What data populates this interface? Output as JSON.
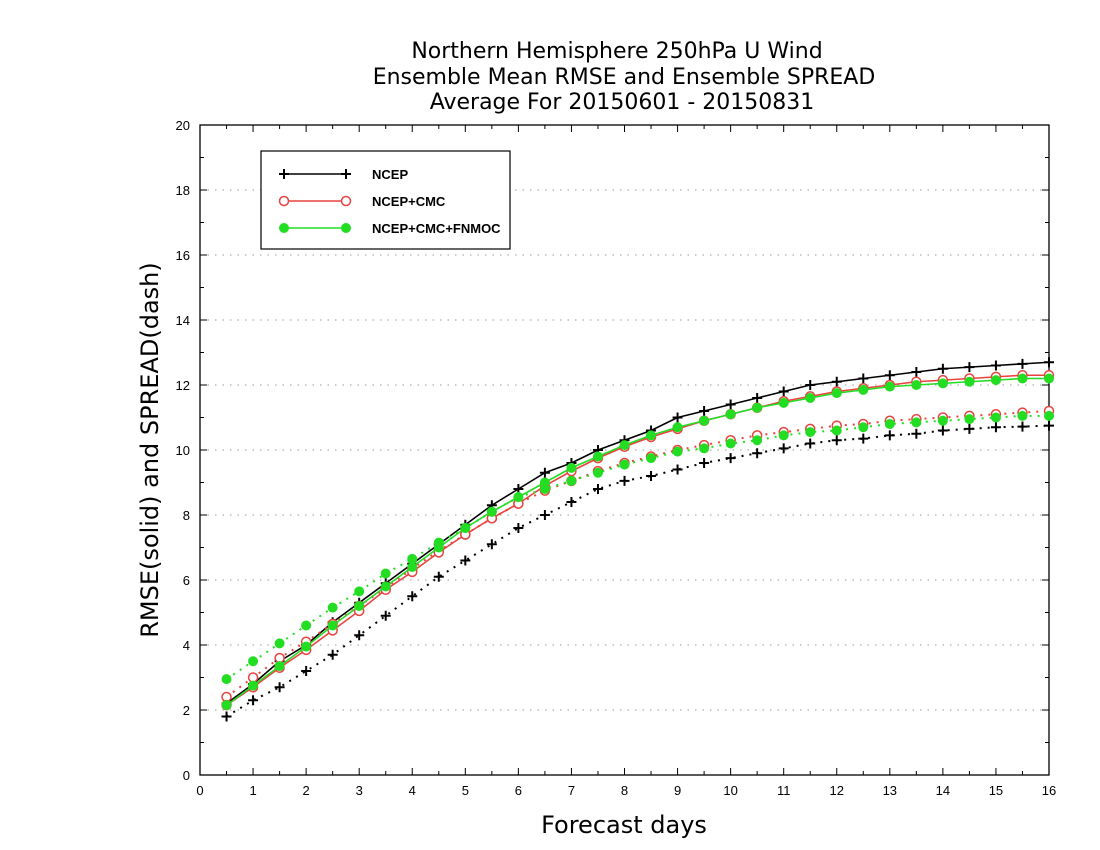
{
  "chart_data": {
    "type": "line",
    "title": [
      "Northern Hemisphere 250hPa U Wind",
      "Ensemble Mean RMSE and Ensemble SPREAD",
      "Average For 20150601 - 20150831"
    ],
    "xlabel": "Forecast days",
    "ylabel": "RMSE(solid) and SPREAD(dash)",
    "xlim": [
      0,
      16
    ],
    "ylim": [
      0,
      20
    ],
    "xticks": [
      "0",
      "1",
      "2",
      "3",
      "4",
      "5",
      "6",
      "7",
      "8",
      "9",
      "10",
      "11",
      "12",
      "13",
      "14",
      "15",
      "16"
    ],
    "yticks": [
      "0",
      "2",
      "4",
      "6",
      "8",
      "10",
      "12",
      "14",
      "16",
      "18",
      "20"
    ],
    "grid": true,
    "legend_position": "top-left",
    "x": [
      0.5,
      1,
      1.5,
      2,
      2.5,
      3,
      3.5,
      4,
      4.5,
      5,
      5.5,
      6,
      6.5,
      7,
      7.5,
      8,
      8.5,
      9,
      9.5,
      10,
      10.5,
      11,
      11.5,
      12,
      12.5,
      13,
      13.5,
      14,
      14.5,
      15,
      15.5,
      16
    ],
    "series": [
      {
        "name": "NCEP",
        "color": "#000000",
        "marker": "plus",
        "rmse": [
          2.2,
          2.8,
          3.5,
          4.0,
          4.7,
          5.3,
          5.9,
          6.5,
          7.1,
          7.7,
          8.3,
          8.8,
          9.3,
          9.6,
          10.0,
          10.3,
          10.6,
          11.0,
          11.2,
          11.4,
          11.6,
          11.8,
          12.0,
          12.1,
          12.2,
          12.3,
          12.4,
          12.5,
          12.55,
          12.6,
          12.65,
          12.7
        ],
        "spread": [
          1.8,
          2.3,
          2.7,
          3.2,
          3.7,
          4.3,
          4.9,
          5.5,
          6.1,
          6.6,
          7.1,
          7.6,
          8.0,
          8.4,
          8.8,
          9.05,
          9.2,
          9.4,
          9.6,
          9.75,
          9.9,
          10.05,
          10.2,
          10.3,
          10.35,
          10.45,
          10.5,
          10.6,
          10.65,
          10.7,
          10.72,
          10.75
        ]
      },
      {
        "name": "NCEP+CMC",
        "color": "#e8433f",
        "marker": "open-circle",
        "rmse": [
          2.15,
          2.7,
          3.3,
          3.85,
          4.45,
          5.05,
          5.7,
          6.25,
          6.85,
          7.4,
          7.9,
          8.35,
          8.9,
          9.35,
          9.75,
          10.1,
          10.4,
          10.65,
          10.9,
          11.1,
          11.3,
          11.5,
          11.65,
          11.8,
          11.9,
          12.0,
          12.1,
          12.15,
          12.2,
          12.25,
          12.3,
          12.3
        ],
        "spread": [
          2.4,
          3.0,
          3.6,
          4.1,
          4.65,
          5.2,
          5.75,
          6.35,
          6.9,
          7.4,
          7.9,
          8.35,
          8.75,
          9.05,
          9.35,
          9.6,
          9.8,
          10.0,
          10.15,
          10.3,
          10.45,
          10.55,
          10.65,
          10.75,
          10.8,
          10.9,
          10.95,
          11.0,
          11.05,
          11.1,
          11.15,
          11.2
        ]
      },
      {
        "name": "NCEP+CMC+FNMOC",
        "color": "#22dd22",
        "marker": "filled-circle",
        "rmse": [
          2.15,
          2.75,
          3.35,
          3.95,
          4.6,
          5.2,
          5.8,
          6.4,
          7.0,
          7.6,
          8.1,
          8.55,
          9.0,
          9.45,
          9.8,
          10.15,
          10.45,
          10.7,
          10.9,
          11.1,
          11.3,
          11.45,
          11.6,
          11.75,
          11.85,
          11.95,
          12.0,
          12.05,
          12.1,
          12.15,
          12.2,
          12.2
        ],
        "spread": [
          2.95,
          3.5,
          4.05,
          4.6,
          5.15,
          5.65,
          6.2,
          6.65,
          7.15,
          7.6,
          8.1,
          8.55,
          8.8,
          9.05,
          9.3,
          9.55,
          9.75,
          9.95,
          10.05,
          10.2,
          10.3,
          10.45,
          10.55,
          10.6,
          10.7,
          10.8,
          10.85,
          10.9,
          10.95,
          11.0,
          11.05,
          11.05
        ]
      }
    ]
  }
}
